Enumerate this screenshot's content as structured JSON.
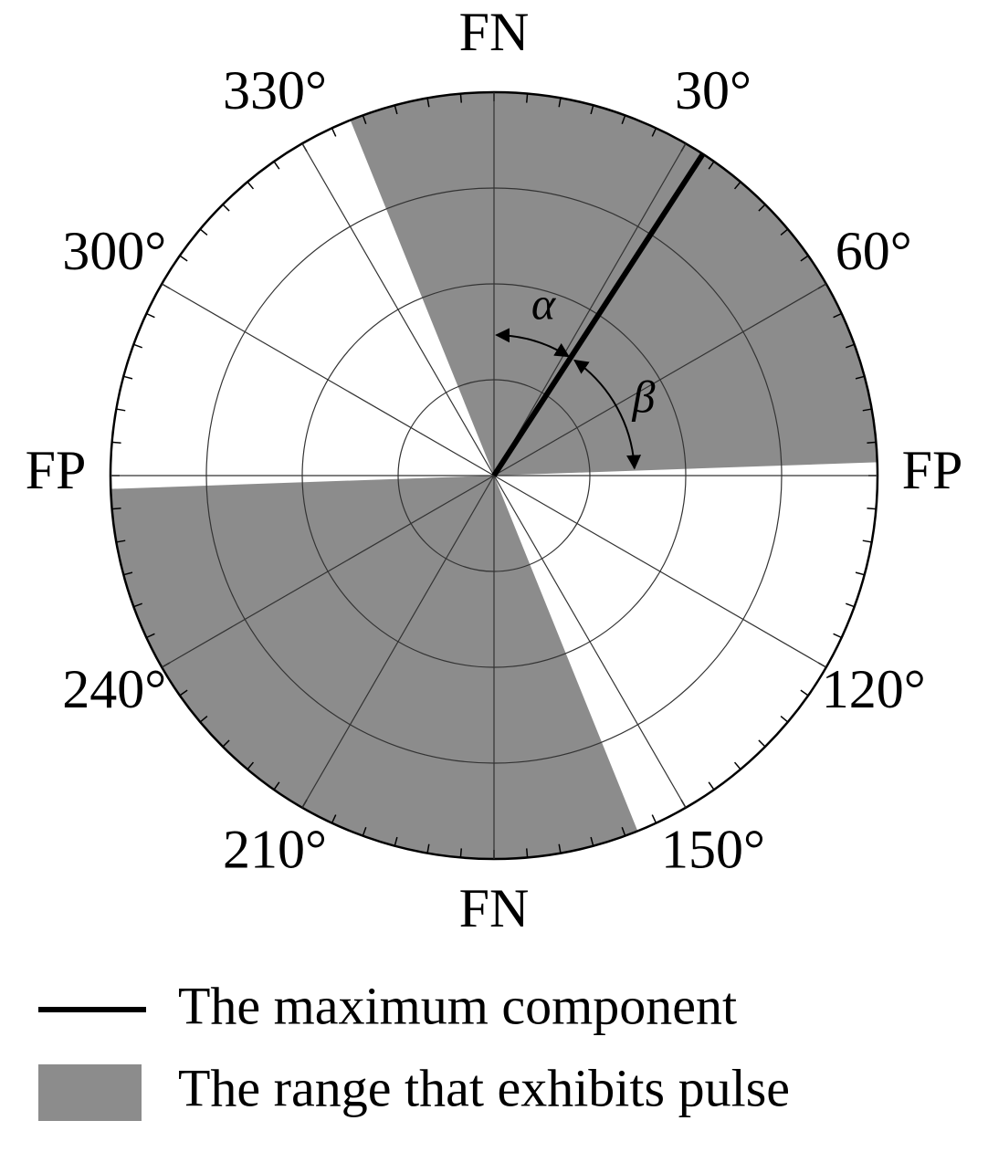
{
  "chart_data": {
    "type": "polar",
    "angular_ticks": [
      {
        "value": 0,
        "label": "FN"
      },
      {
        "value": 30,
        "label": "30°"
      },
      {
        "value": 60,
        "label": "60°"
      },
      {
        "value": 90,
        "label": "FP"
      },
      {
        "value": 120,
        "label": "120°"
      },
      {
        "value": 150,
        "label": "150°"
      },
      {
        "value": 180,
        "label": "FN"
      },
      {
        "value": 210,
        "label": "210°"
      },
      {
        "value": 240,
        "label": "240°"
      },
      {
        "value": 270,
        "label": "FP"
      },
      {
        "value": 300,
        "label": "300°"
      },
      {
        "value": 330,
        "label": "330°"
      }
    ],
    "series": [
      {
        "name": "The maximum component",
        "color": "#000000",
        "values": [
          33
        ]
      },
      {
        "name": "The range that exhibits pulse",
        "color": "#8c8c8c",
        "values": [
          [
            338,
            88
          ],
          [
            158,
            268
          ]
        ]
      }
    ],
    "annotations": [
      "α",
      "β"
    ]
  }
}
